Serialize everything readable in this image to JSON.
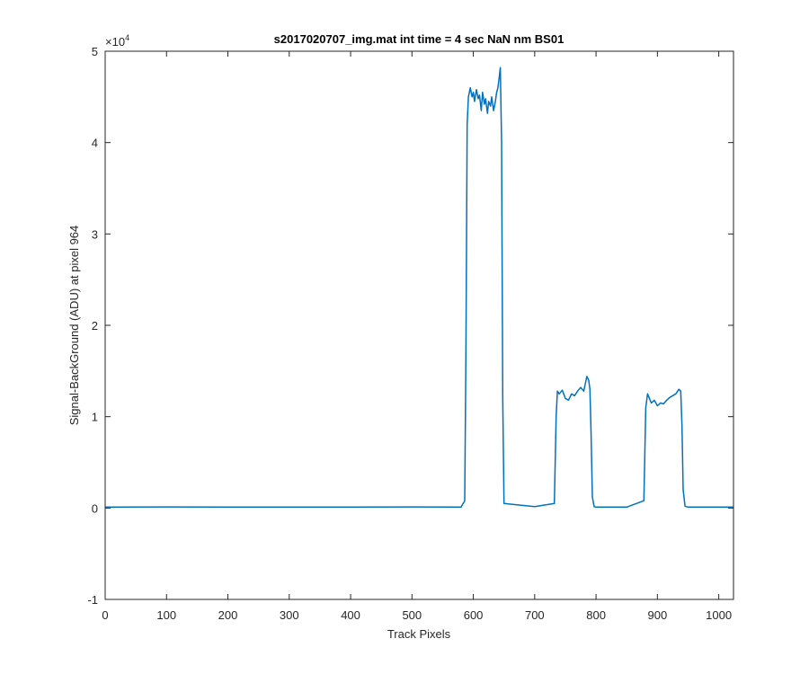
{
  "chart_data": {
    "type": "line",
    "title": "s2017020707_img.mat int time = 4 sec  NaN nm BS01",
    "xlabel": "Track Pixels",
    "ylabel": "Signal-BackGround (ADU) at pixel 964",
    "exponent_label": "×10",
    "exponent_power": "4",
    "xlim": [
      0,
      1024
    ],
    "ylim": [
      -10000,
      50000
    ],
    "xticks": [
      0,
      100,
      200,
      300,
      400,
      500,
      600,
      700,
      800,
      900,
      1000
    ],
    "xtick_labels": [
      "0",
      "100",
      "200",
      "300",
      "400",
      "500",
      "600",
      "700",
      "800",
      "900",
      "1000"
    ],
    "yticks": [
      -10000,
      0,
      10000,
      20000,
      30000,
      40000,
      50000
    ],
    "ytick_labels": [
      "-1",
      "0",
      "1",
      "2",
      "3",
      "4",
      "5"
    ],
    "grid": false,
    "line_color": "#0072BD",
    "series": [
      {
        "x": [
          0,
          100,
          200,
          300,
          400,
          500,
          580,
          586,
          588,
          590,
          592,
          595,
          598,
          600,
          602,
          605,
          608,
          610,
          613,
          615,
          618,
          620,
          623,
          625,
          628,
          630,
          633,
          636,
          638,
          640,
          642,
          644,
          646,
          648,
          650,
          700,
          732,
          735,
          737,
          740,
          745,
          750,
          755,
          760,
          765,
          770,
          775,
          780,
          785,
          788,
          790,
          792,
          794,
          797,
          800,
          850,
          878,
          881,
          884,
          887,
          890,
          895,
          900,
          905,
          910,
          915,
          920,
          925,
          930,
          935,
          938,
          940,
          942,
          945,
          950,
          1024
        ],
        "y": [
          100,
          120,
          100,
          110,
          100,
          120,
          100,
          800,
          18000,
          42000,
          45000,
          46000,
          45000,
          45500,
          44500,
          45800,
          44800,
          45200,
          43500,
          45500,
          44200,
          44800,
          43200,
          44500,
          44000,
          45000,
          43500,
          44500,
          45500,
          46000,
          47000,
          48200,
          40000,
          12000,
          500,
          150,
          500,
          10000,
          12800,
          12500,
          12900,
          12000,
          11800,
          12500,
          12300,
          12800,
          13200,
          12800,
          14400,
          14000,
          13000,
          8000,
          1200,
          150,
          100,
          100,
          800,
          11000,
          12500,
          12000,
          11500,
          11800,
          11200,
          11500,
          11400,
          11800,
          12100,
          12300,
          12500,
          13000,
          12800,
          9000,
          2000,
          200,
          100,
          100
        ]
      }
    ]
  }
}
